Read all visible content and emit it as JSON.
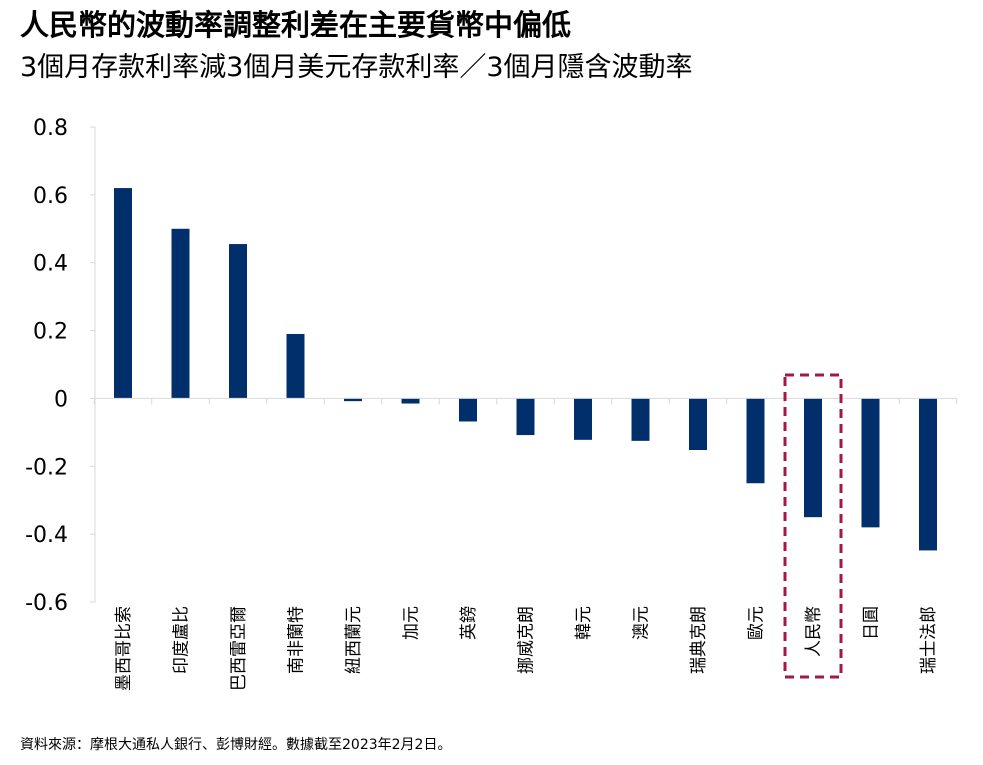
{
  "header": {
    "title": "人民幣的波動率調整利差在主要貨幣中偏低",
    "subtitle": "3個月存款利率減3個月美元存款利率／3個月隱含波動率"
  },
  "footer": {
    "source": "資料來源：摩根大通私人銀行、彭博財經。數據截至2023年2月2日。"
  },
  "colors": {
    "bar": "#002f6c",
    "highlight_box": "#a3174a",
    "axis": "#d9d9d9"
  },
  "chart_data": {
    "type": "bar",
    "categories": [
      "墨西哥比索",
      "印度盧比",
      "巴西雷亞爾",
      "南非蘭特",
      "紐西蘭元",
      "加元",
      "英鎊",
      "挪威克朗",
      "韓元",
      "澳元",
      "瑞典克朗",
      "歐元",
      "人民幣",
      "日圓",
      "瑞士法郎"
    ],
    "values": [
      0.62,
      0.5,
      0.455,
      0.19,
      -0.008,
      -0.015,
      -0.068,
      -0.108,
      -0.122,
      -0.125,
      -0.152,
      -0.25,
      -0.35,
      -0.38,
      -0.448
    ],
    "ylim": [
      -0.6,
      0.8
    ],
    "yticks": [
      "-0.6",
      "-0.4",
      "-0.2",
      "0",
      "0.2",
      "0.4",
      "0.6",
      "0.8"
    ],
    "highlight_category": "人民幣",
    "grid": false,
    "legend": "none"
  }
}
